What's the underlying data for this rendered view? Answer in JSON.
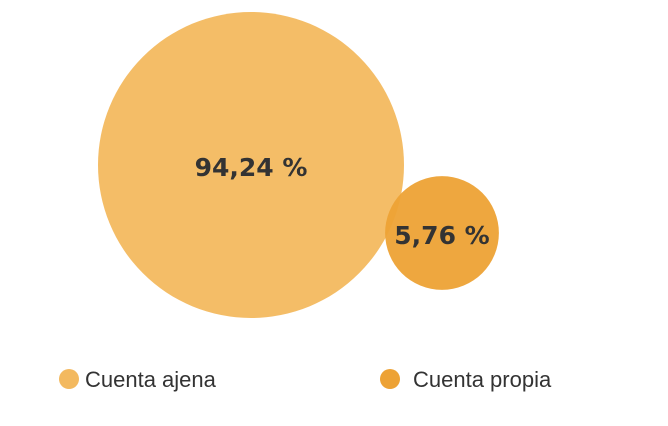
{
  "chart_data": {
    "type": "bubble",
    "categories": [
      "Cuenta ajena",
      "Cuenta propia"
    ],
    "values": [
      94.24,
      5.76
    ],
    "value_labels": [
      "94,24 %",
      "5,76 %"
    ],
    "colors": [
      "#f3b95f",
      "#eda235"
    ]
  }
}
